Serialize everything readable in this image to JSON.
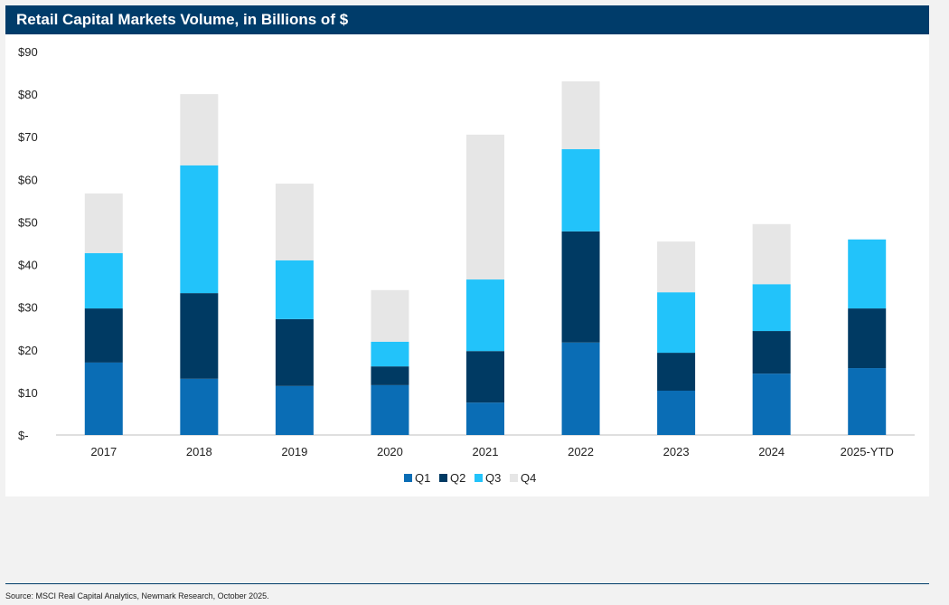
{
  "chart_data": {
    "type": "bar",
    "stacked": true,
    "title": "Retail Capital Markets Volume, in Billions of $",
    "xlabel": "",
    "ylabel": "",
    "ylim": [
      0,
      90
    ],
    "yticks": [
      0,
      10,
      20,
      30,
      40,
      50,
      60,
      70,
      80,
      90
    ],
    "ytick_labels": [
      "$-",
      "$10",
      "$20",
      "$30",
      "$40",
      "$50",
      "$60",
      "$70",
      "$80",
      "$90"
    ],
    "grid": false,
    "legend_position": "bottom",
    "categories": [
      "2017",
      "2018",
      "2019",
      "2020",
      "2021",
      "2022",
      "2023",
      "2024",
      "2025-YTD"
    ],
    "series": [
      {
        "name": "Q1",
        "color": "#0a6db5",
        "values": [
          17.0,
          13.2,
          11.5,
          11.7,
          7.6,
          21.7,
          10.4,
          14.4,
          15.7
        ]
      },
      {
        "name": "Q2",
        "color": "#003a63",
        "values": [
          12.7,
          20.1,
          15.7,
          4.4,
          12.1,
          26.1,
          8.9,
          10.0,
          14.0
        ]
      },
      {
        "name": "Q3",
        "color": "#22c3fa",
        "values": [
          13.0,
          30.0,
          13.8,
          5.8,
          16.8,
          19.3,
          14.2,
          11.0,
          16.2
        ]
      },
      {
        "name": "Q4",
        "color": "#e6e6e6",
        "values": [
          14.0,
          16.7,
          18.0,
          12.1,
          34.0,
          15.9,
          11.9,
          14.1,
          0
        ]
      }
    ]
  },
  "source": "Source: MSCI Real Capital Analytics, Newmark Research, October 2025."
}
